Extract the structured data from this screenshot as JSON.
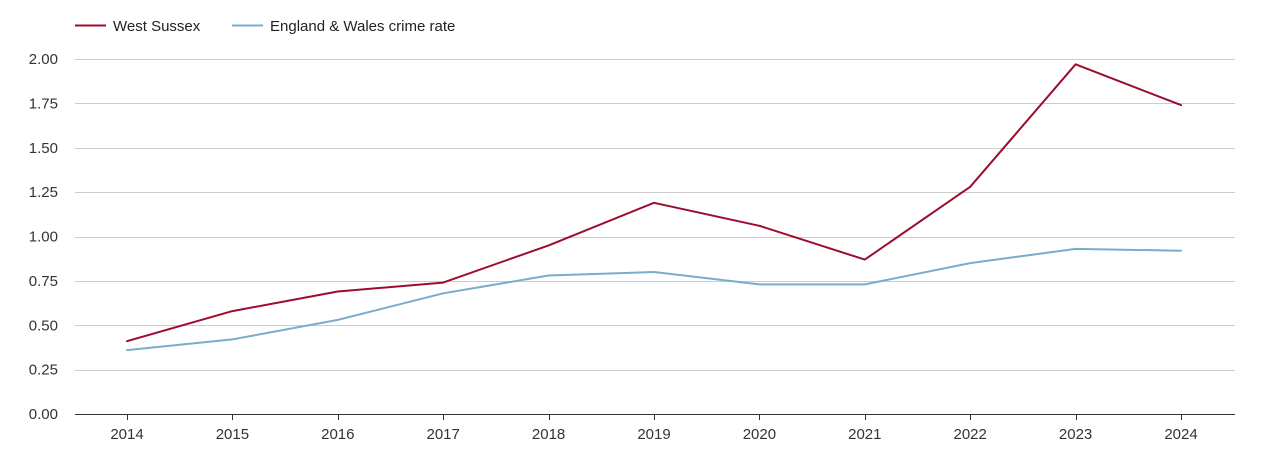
{
  "chart_data": {
    "type": "line",
    "x": [
      "2014",
      "2015",
      "2016",
      "2017",
      "2018",
      "2019",
      "2020",
      "2021",
      "2022",
      "2023",
      "2024"
    ],
    "ylim": [
      0,
      2.0
    ],
    "yticks": [
      "0.00",
      "0.25",
      "0.50",
      "0.75",
      "1.00",
      "1.25",
      "1.50",
      "1.75",
      "2.00"
    ],
    "grid": true,
    "legend": "top-left",
    "series": [
      {
        "name": "West Sussex",
        "color": "#9b0d2e",
        "values": [
          0.41,
          0.58,
          0.69,
          0.74,
          0.95,
          1.19,
          1.06,
          0.87,
          1.28,
          1.97,
          1.74
        ]
      },
      {
        "name": "England & Wales crime rate",
        "color": "#7aaccd",
        "values": [
          0.36,
          0.42,
          0.53,
          0.68,
          0.78,
          0.8,
          0.73,
          0.73,
          0.85,
          0.93,
          0.92
        ]
      }
    ]
  }
}
